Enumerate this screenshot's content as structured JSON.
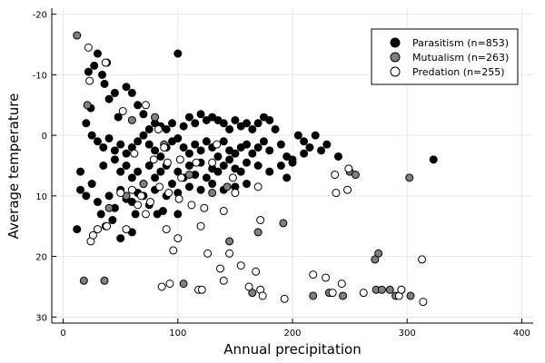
{
  "chart_data": {
    "type": "scatter",
    "xlabel": "Annual precipitation",
    "ylabel": "Average temperature",
    "xlim": [
      -10,
      410
    ],
    "ylim": [
      -21,
      31
    ],
    "y_reversed": true,
    "x_ticks": [
      "0",
      "100",
      "200",
      "300",
      "400"
    ],
    "y_ticks": [
      "-20",
      "-10",
      "0",
      "10",
      "20",
      "30"
    ],
    "grid": true,
    "legend_position": "top-right",
    "series": [
      {
        "name": "Parasitism (n=853)",
        "color": "#000000",
        "points": [
          [
            22,
            -10.5
          ],
          [
            27,
            -11.5
          ],
          [
            30,
            -13.5
          ],
          [
            34,
            -10
          ],
          [
            38,
            -12
          ],
          [
            36,
            -8.5
          ],
          [
            24,
            -4.5
          ],
          [
            40,
            -6
          ],
          [
            45,
            -7
          ],
          [
            48,
            -3
          ],
          [
            55,
            -8
          ],
          [
            60,
            -7
          ],
          [
            65,
            -5
          ],
          [
            70,
            -3.5
          ],
          [
            75,
            -1
          ],
          [
            80,
            -2
          ],
          [
            85,
            -1.5
          ],
          [
            90,
            -1
          ],
          [
            95,
            -2
          ],
          [
            100,
            -13.5
          ],
          [
            105,
            -1.5
          ],
          [
            110,
            -3
          ],
          [
            115,
            -2
          ],
          [
            120,
            -3.5
          ],
          [
            125,
            -2.5
          ],
          [
            130,
            -3
          ],
          [
            135,
            -2.5
          ],
          [
            140,
            -2
          ],
          [
            145,
            -1
          ],
          [
            150,
            -2.5
          ],
          [
            155,
            -1.5
          ],
          [
            160,
            -2
          ],
          [
            165,
            -1
          ],
          [
            170,
            -2
          ],
          [
            175,
            -3
          ],
          [
            180,
            -2.5
          ],
          [
            185,
            -1
          ],
          [
            25,
            0
          ],
          [
            30,
            1
          ],
          [
            35,
            2
          ],
          [
            40,
            0.5
          ],
          [
            45,
            2.5
          ],
          [
            50,
            1.5
          ],
          [
            55,
            3
          ],
          [
            60,
            2
          ],
          [
            65,
            1
          ],
          [
            70,
            0
          ],
          [
            75,
            1.5
          ],
          [
            80,
            2.5
          ],
          [
            85,
            3.5
          ],
          [
            90,
            2
          ],
          [
            95,
            1
          ],
          [
            100,
            0.5
          ],
          [
            105,
            2
          ],
          [
            110,
            3
          ],
          [
            115,
            1.5
          ],
          [
            120,
            2.5
          ],
          [
            125,
            1
          ],
          [
            130,
            2
          ],
          [
            135,
            3.5
          ],
          [
            140,
            1
          ],
          [
            145,
            2.5
          ],
          [
            150,
            3
          ],
          [
            155,
            2
          ],
          [
            160,
            1.5
          ],
          [
            165,
            3
          ],
          [
            170,
            2
          ],
          [
            175,
            1
          ],
          [
            180,
            2.5
          ],
          [
            190,
            1.5
          ],
          [
            195,
            3.5
          ],
          [
            200,
            4
          ],
          [
            205,
            0
          ],
          [
            210,
            1
          ],
          [
            215,
            2
          ],
          [
            220,
            0
          ],
          [
            225,
            2.5
          ],
          [
            230,
            1.5
          ],
          [
            15,
            6
          ],
          [
            25,
            8
          ],
          [
            35,
            5
          ],
          [
            45,
            4
          ],
          [
            50,
            6
          ],
          [
            55,
            5
          ],
          [
            60,
            7
          ],
          [
            65,
            6
          ],
          [
            70,
            8
          ],
          [
            75,
            5
          ],
          [
            80,
            7
          ],
          [
            85,
            6
          ],
          [
            90,
            5
          ],
          [
            95,
            8
          ],
          [
            100,
            6
          ],
          [
            105,
            7
          ],
          [
            110,
            5
          ],
          [
            115,
            6.5
          ],
          [
            120,
            4.5
          ],
          [
            125,
            7
          ],
          [
            130,
            5.5
          ],
          [
            135,
            6
          ],
          [
            140,
            5
          ],
          [
            145,
            4
          ],
          [
            150,
            5.5
          ],
          [
            155,
            6
          ],
          [
            160,
            4.5
          ],
          [
            170,
            5
          ],
          [
            180,
            6
          ],
          [
            190,
            5
          ],
          [
            195,
            7
          ],
          [
            200,
            4.5
          ],
          [
            15,
            9
          ],
          [
            20,
            10
          ],
          [
            30,
            11
          ],
          [
            40,
            10
          ],
          [
            45,
            12
          ],
          [
            50,
            9
          ],
          [
            55,
            10.5
          ],
          [
            60,
            11
          ],
          [
            65,
            9.5
          ],
          [
            70,
            10
          ],
          [
            75,
            11.5
          ],
          [
            80,
            9
          ],
          [
            90,
            10
          ],
          [
            100,
            9.5
          ],
          [
            110,
            8.5
          ],
          [
            120,
            9
          ],
          [
            130,
            8
          ],
          [
            140,
            9
          ],
          [
            150,
            8.5
          ],
          [
            160,
            8
          ],
          [
            12,
            15.5
          ],
          [
            33,
            13
          ],
          [
            37,
            15
          ],
          [
            43,
            14
          ],
          [
            50,
            17
          ],
          [
            60,
            16
          ],
          [
            63,
            13
          ],
          [
            82,
            13
          ],
          [
            87,
            12.5
          ],
          [
            100,
            13
          ],
          [
            323,
            4
          ],
          [
            240,
            3.5
          ],
          [
            210,
            3
          ],
          [
            20,
            -2
          ]
        ]
      },
      {
        "name": "Mutualism (n=263)",
        "color": "#808080",
        "points": [
          [
            12,
            -16.5
          ],
          [
            21,
            -5
          ],
          [
            60,
            -2.5
          ],
          [
            80,
            -3
          ],
          [
            88,
            1.5
          ],
          [
            110,
            6.5
          ],
          [
            130,
            9.5
          ],
          [
            143,
            8.5
          ],
          [
            145,
            17.5
          ],
          [
            170,
            16
          ],
          [
            192,
            14.5
          ],
          [
            250,
            6
          ],
          [
            255,
            6.5
          ],
          [
            302,
            7
          ],
          [
            275,
            19.5
          ],
          [
            272,
            20.5
          ],
          [
            18,
            24
          ],
          [
            36,
            24
          ],
          [
            105,
            24.5
          ],
          [
            165,
            26
          ],
          [
            218,
            26.5
          ],
          [
            232,
            26
          ],
          [
            244,
            26.5
          ],
          [
            273,
            25.5
          ],
          [
            278,
            25.5
          ],
          [
            285,
            25.5
          ],
          [
            290,
            26.5
          ],
          [
            295,
            25.5
          ],
          [
            303,
            26.5
          ],
          [
            70,
            8
          ],
          [
            55,
            10
          ],
          [
            40,
            12
          ]
        ]
      },
      {
        "name": "Predation (n=255)",
        "color": "#ffffff",
        "points": [
          [
            22,
            -14.5
          ],
          [
            37,
            -12
          ],
          [
            23,
            -9
          ],
          [
            52,
            -4
          ],
          [
            72,
            -5
          ],
          [
            83,
            -1
          ],
          [
            88,
            2
          ],
          [
            62,
            3
          ],
          [
            79,
            4
          ],
          [
            91,
            4.5
          ],
          [
            102,
            4
          ],
          [
            116,
            4.5
          ],
          [
            130,
            4.5
          ],
          [
            134,
            1.5
          ],
          [
            170,
            8.5
          ],
          [
            148,
            7
          ],
          [
            60,
            9
          ],
          [
            68,
            10
          ],
          [
            76,
            11
          ],
          [
            84,
            8.5
          ],
          [
            92,
            9.5
          ],
          [
            101,
            10.5
          ],
          [
            112,
            11.5
          ],
          [
            123,
            12
          ],
          [
            140,
            12.5
          ],
          [
            24,
            17.5
          ],
          [
            26,
            16.5
          ],
          [
            30,
            15.5
          ],
          [
            38,
            15
          ],
          [
            55,
            15.5
          ],
          [
            72,
            13
          ],
          [
            90,
            15.5
          ],
          [
            100,
            17
          ],
          [
            120,
            15
          ],
          [
            145,
            19.5
          ],
          [
            172,
            14
          ],
          [
            96,
            19
          ],
          [
            126,
            19.5
          ],
          [
            137,
            22
          ],
          [
            140,
            24
          ],
          [
            118,
            25.5
          ],
          [
            121,
            25.5
          ],
          [
            155,
            21.5
          ],
          [
            168,
            22.5
          ],
          [
            172,
            25.5
          ],
          [
            174,
            26.5
          ],
          [
            162,
            25
          ],
          [
            193,
            27
          ],
          [
            229,
            23.5
          ],
          [
            235,
            26
          ],
          [
            243,
            24.5
          ],
          [
            262,
            26
          ],
          [
            293,
            26.5
          ],
          [
            295,
            25.5
          ],
          [
            314,
            27.5
          ],
          [
            313,
            20.5
          ],
          [
            218,
            23
          ],
          [
            237,
            6.5
          ],
          [
            238,
            9.5
          ],
          [
            248,
            9
          ],
          [
            249,
            5.5
          ],
          [
            86,
            25
          ],
          [
            93,
            24.5
          ],
          [
            50,
            9.5
          ],
          [
            65,
            11.5
          ],
          [
            150,
            9.5
          ],
          [
            103,
            7
          ]
        ]
      }
    ]
  }
}
